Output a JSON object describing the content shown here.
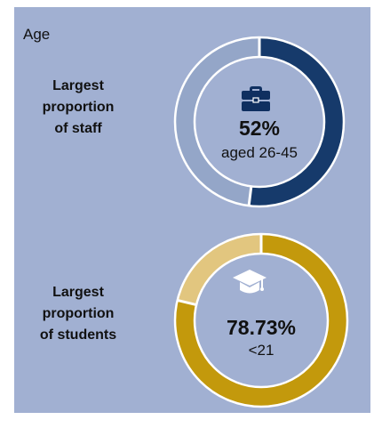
{
  "heading": "Age",
  "colors": {
    "panel_background": "#a1b0d2",
    "staff_highlight": "#163a6b",
    "staff_remainder": "#94a6c8",
    "students_highlight": "#c3990c",
    "students_remainder": "#e2c67f",
    "icon_fill": "#0f2f60"
  },
  "chart_data": [
    {
      "type": "pie",
      "style": "donut",
      "group_label_lines": [
        "Largest",
        "proportion",
        "of staff"
      ],
      "center_value": "52%",
      "center_caption": "aged 26-45",
      "icon": "briefcase-icon",
      "slices": [
        {
          "label": "aged 26-45",
          "value": 52,
          "color": "#163a6b"
        },
        {
          "label": "",
          "value": 48,
          "color": "#94a6c8"
        }
      ]
    },
    {
      "type": "pie",
      "style": "donut",
      "group_label_lines": [
        "Largest",
        "proportion",
        "of students"
      ],
      "center_value": "78.73%",
      "center_caption": "<21",
      "icon": "graduation-cap-icon",
      "slices": [
        {
          "label": "<21",
          "value": 78.73,
          "color": "#c3990c"
        },
        {
          "label": "",
          "value": 21.27,
          "color": "#e2c67f"
        }
      ]
    }
  ]
}
